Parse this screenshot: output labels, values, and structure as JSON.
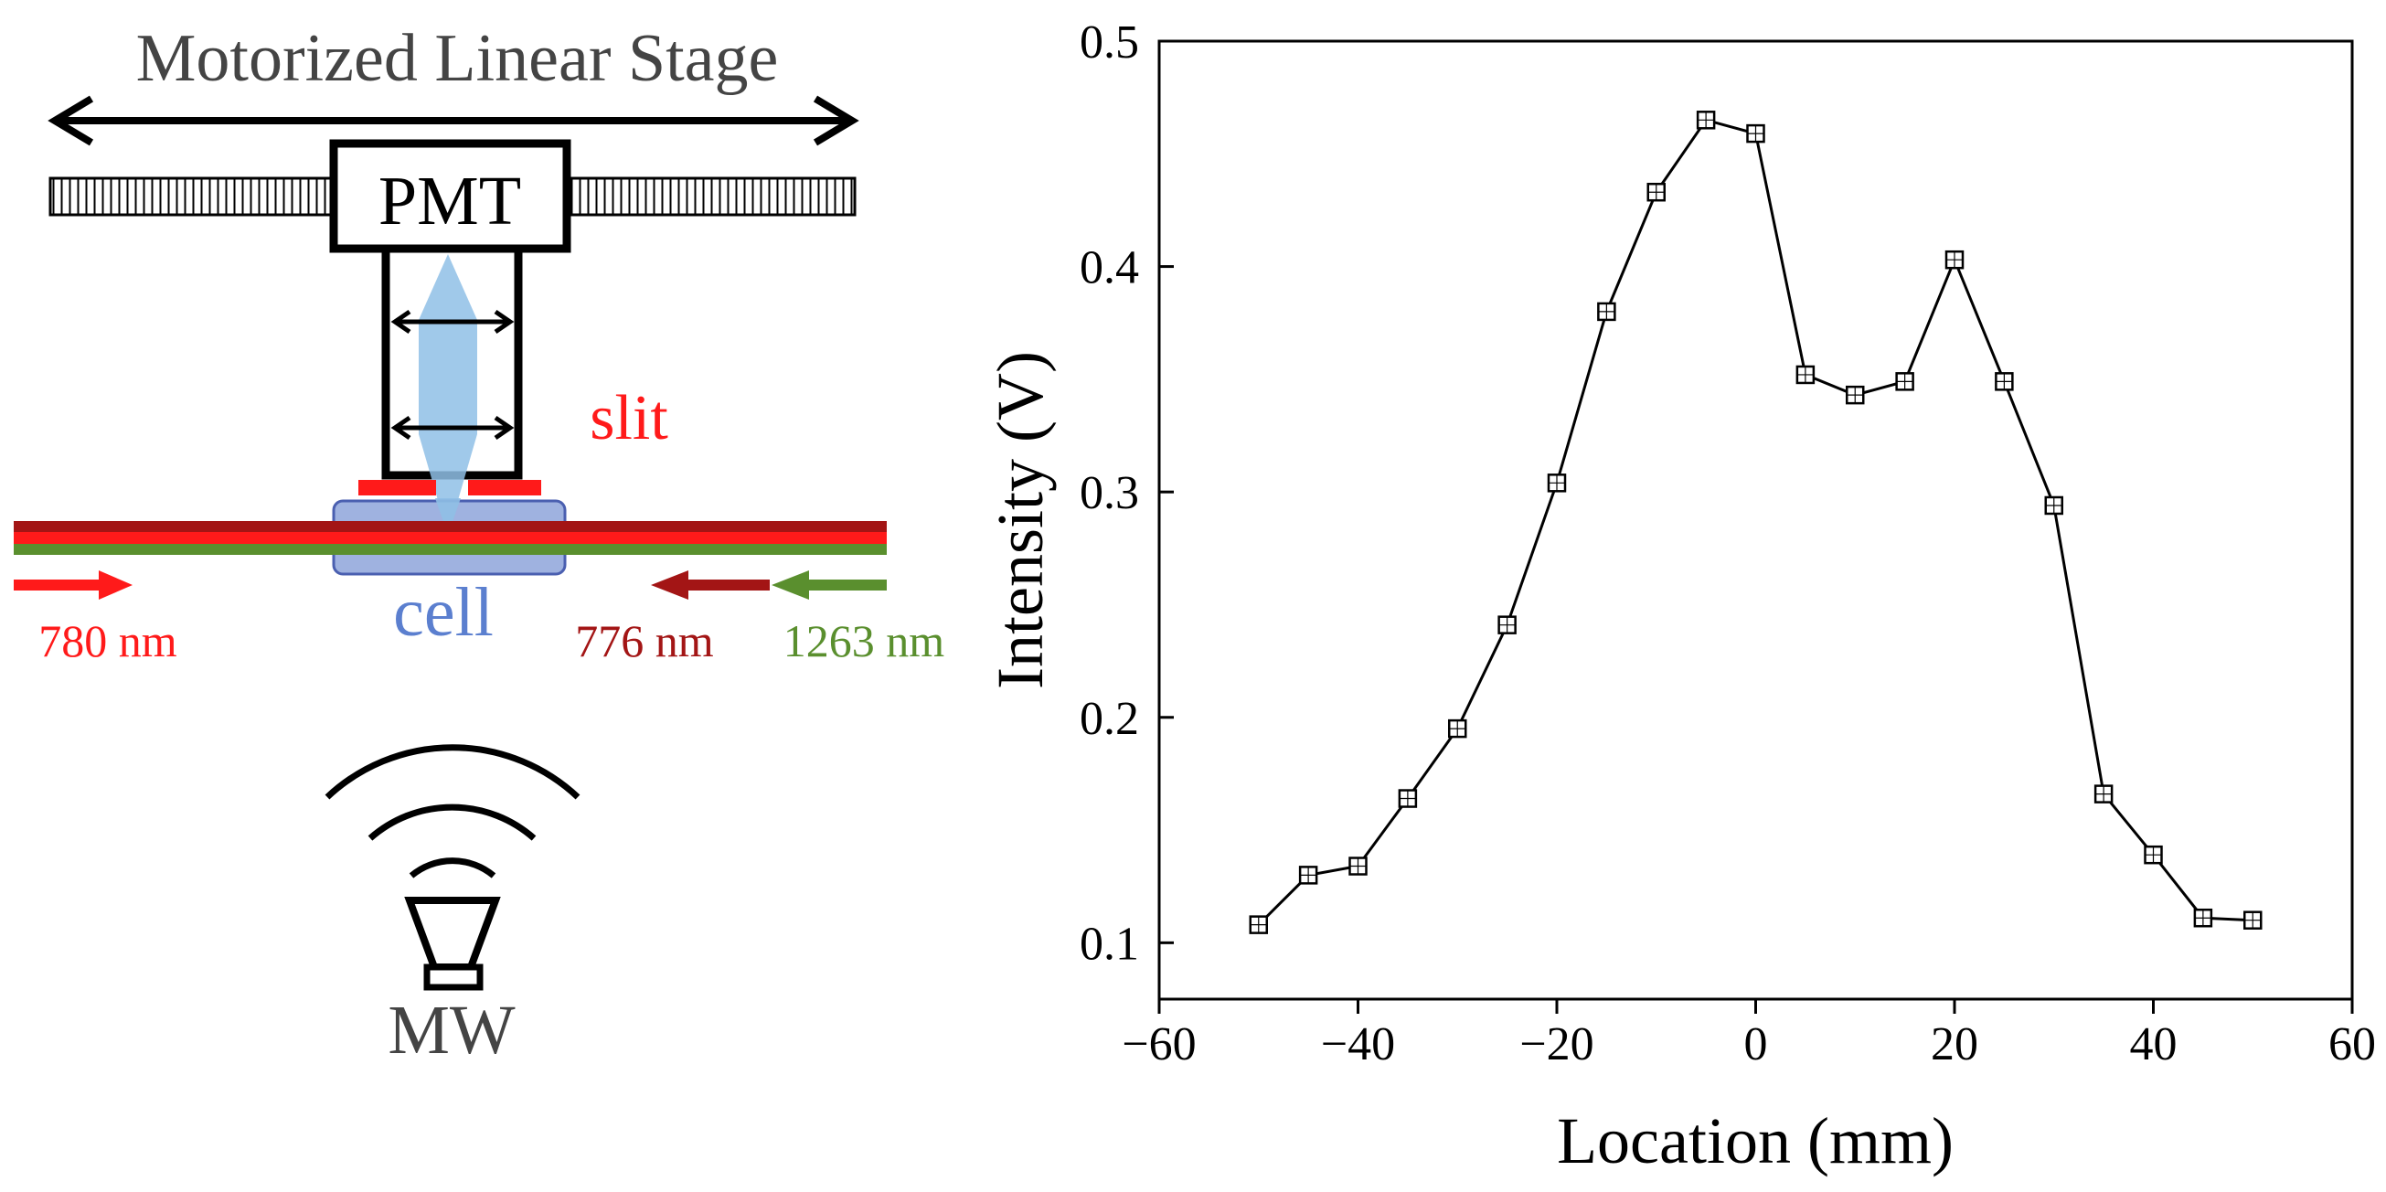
{
  "schematic": {
    "stage_label": "Motorized Linear Stage",
    "pmt_label": "PMT",
    "slit_label": "slit",
    "cell_label": "cell",
    "mw_label": "MW",
    "beams": [
      {
        "label": "780 nm",
        "color": "#ff1a1a",
        "direction": "right"
      },
      {
        "label": "776 nm",
        "color": "#a31515",
        "direction": "left"
      },
      {
        "label": "1263 nm",
        "color": "#5a8f2e",
        "direction": "left"
      }
    ],
    "colors": {
      "slit": "#ff1a1a",
      "cell_fill": "#9fb2e0",
      "cell_stroke": "#4a5fb0",
      "cell_text": "#5b7fcf",
      "lens_beam": "#8fbfe6",
      "text_gray": "#444444"
    }
  },
  "chart_data": {
    "type": "line",
    "title": "",
    "xlabel": "Location (mm)",
    "ylabel": "Intensity (V)",
    "xlim": [
      -60,
      60
    ],
    "ylim": [
      0.075,
      0.5
    ],
    "xticks": [
      -60,
      -40,
      -20,
      0,
      20,
      40,
      60
    ],
    "xtick_labels": [
      "−60",
      "−40",
      "−20",
      "0",
      "20",
      "40",
      "60"
    ],
    "yticks": [
      0.1,
      0.2,
      0.3,
      0.4,
      0.5
    ],
    "ytick_labels": [
      "0.1",
      "0.2",
      "0.3",
      "0.4",
      "0.5"
    ],
    "grid": false,
    "marker": "open-square",
    "series": [
      {
        "x": [
          -50,
          -45,
          -40,
          -35,
          -30,
          -25,
          -20,
          -15,
          -10,
          -5,
          0,
          5,
          10,
          15,
          20,
          25,
          30,
          35,
          40,
          45,
          50
        ],
        "y": [
          0.108,
          0.13,
          0.134,
          0.164,
          0.195,
          0.241,
          0.304,
          0.38,
          0.433,
          0.465,
          0.459,
          0.352,
          0.343,
          0.349,
          0.403,
          0.349,
          0.294,
          0.166,
          0.139,
          0.111,
          0.11
        ]
      }
    ]
  }
}
